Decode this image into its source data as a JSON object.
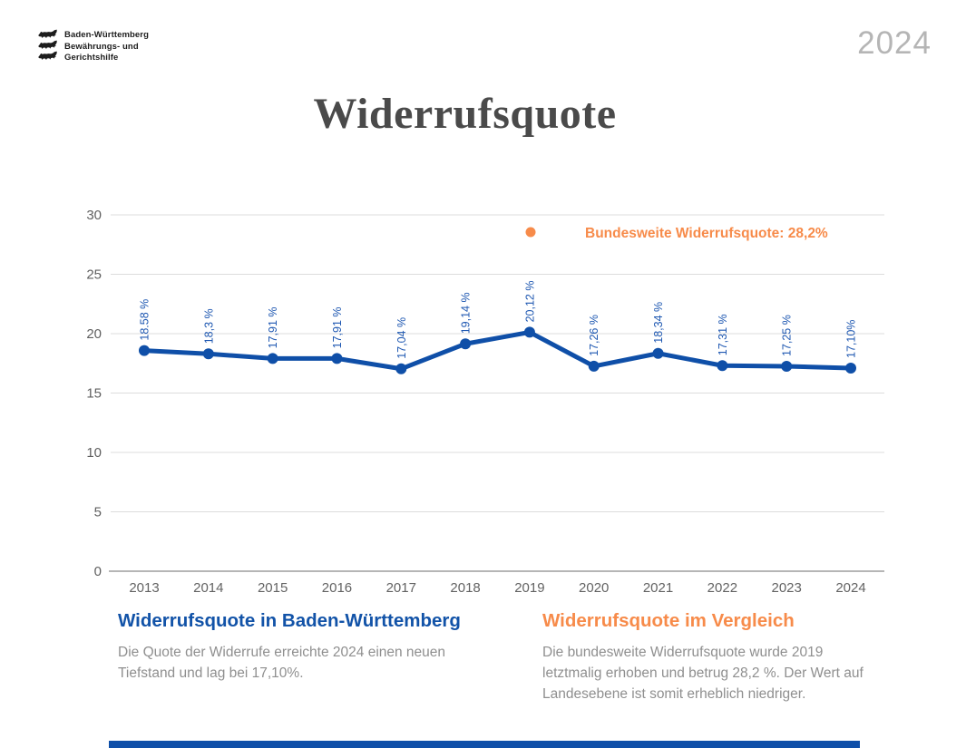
{
  "header": {
    "logo": {
      "icon": "three-lions-crest",
      "text": "Baden-Württemberg\nBewährungs- und\nGerichtshilfe"
    },
    "year_badge": "2024",
    "title": "Widerrufsquote"
  },
  "chart_data": {
    "type": "line",
    "title": "Widerrufsquote",
    "categories": [
      "2013",
      "2014",
      "2015",
      "2016",
      "2017",
      "2018",
      "2019",
      "2020",
      "2021",
      "2022",
      "2023",
      "2024"
    ],
    "series": [
      {
        "name": "Widerrufsquote in Baden-Württemberg",
        "values": [
          18.58,
          18.3,
          17.91,
          17.91,
          17.04,
          19.14,
          20.12,
          17.26,
          18.34,
          17.31,
          17.25,
          17.1
        ],
        "point_labels": [
          "18.58 %",
          "18,3 %",
          "17,91 %",
          "17,91 %",
          "17,04 %",
          "19,14 %",
          "20,12 %",
          "17,26 %",
          "18,34 %",
          "17,31 %",
          "17,25 %",
          "17,10%"
        ],
        "color": "#0f4fa8",
        "label_color": "#2059b2"
      }
    ],
    "legend": {
      "label": "Bundesweite Widerrufsquote: 28,2%",
      "color": "#f78b4a",
      "position": "top-right-inside"
    },
    "ylim": [
      0,
      30
    ],
    "yticks": [
      0,
      5,
      10,
      15,
      20,
      25,
      30
    ],
    "grid": true,
    "grid_color": "#dcdcdc",
    "axis_color": "#9e9e9e",
    "tick_label_color": "#5f5f5f"
  },
  "sections": [
    {
      "heading": "Widerrufsquote in Baden-Württemberg",
      "body": "Die Quote der Widerrufe erreichte 2024 einen neuen\nTiefstand und lag bei 17,10%."
    },
    {
      "heading": "Widerrufsquote im Vergleich",
      "body": "Die bundesweite Widerrufsquote wurde 2019\nletztmalig erhoben und betrug 28,2 %. Der Wert auf\nLandesebene ist somit erheblich niedriger."
    }
  ],
  "footer": {
    "accent_bar_color": "#0f4fa8"
  }
}
